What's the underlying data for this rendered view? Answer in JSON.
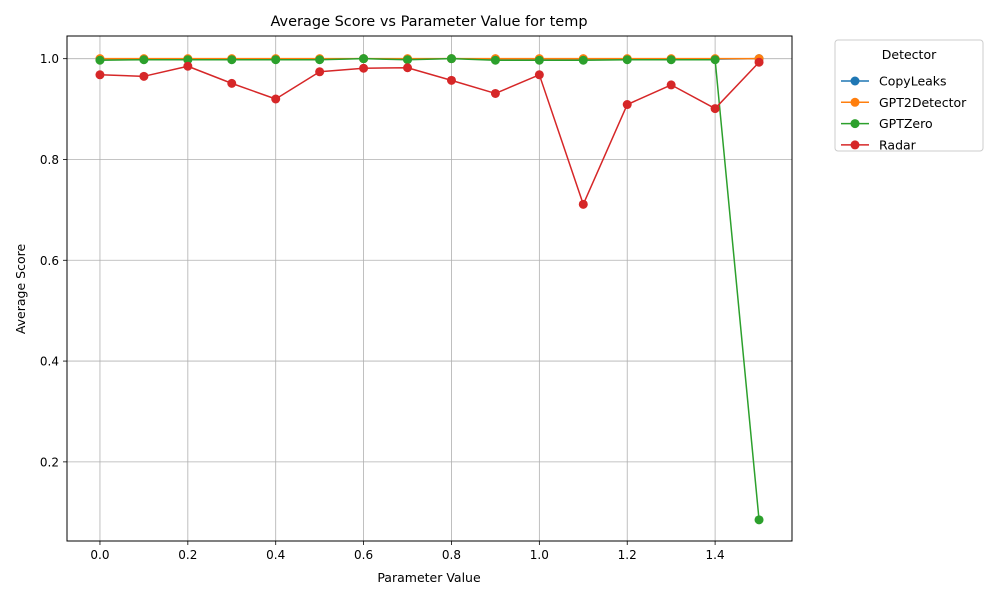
{
  "chart_data": {
    "type": "line",
    "title": "Average Score vs Parameter Value for temp",
    "xlabel": "Parameter Value",
    "ylabel": "Average Score",
    "xlim": [
      -0.075,
      1.575
    ],
    "ylim": [
      0.043,
      1.045
    ],
    "xticks": [
      0.0,
      0.2,
      0.4,
      0.6,
      0.8,
      1.0,
      1.2,
      1.4
    ],
    "xtick_labels": [
      "0.0",
      "0.2",
      "0.4",
      "0.6",
      "0.8",
      "1.0",
      "1.2",
      "1.4"
    ],
    "yticks": [
      0.2,
      0.4,
      0.6,
      0.8,
      1.0
    ],
    "ytick_labels": [
      "0.2",
      "0.4",
      "0.6",
      "0.8",
      "1.0"
    ],
    "grid": true,
    "legend": {
      "title": "Detector",
      "placement": "outside-upper-right"
    },
    "x": [
      0.0,
      0.1,
      0.2,
      0.3,
      0.4,
      0.5,
      0.6,
      0.7,
      0.8,
      0.9,
      1.0,
      1.1,
      1.2,
      1.3,
      1.4,
      1.5
    ],
    "series": [
      {
        "name": "CopyLeaks",
        "color": "#1f77b4",
        "values": [
          0.999,
          0.999,
          0.999,
          0.999,
          0.999,
          0.999,
          1.0,
          0.999,
          1.0,
          0.999,
          0.999,
          0.999,
          0.999,
          0.999,
          0.999,
          1.0
        ]
      },
      {
        "name": "GPT2Detector",
        "color": "#ff7f0e",
        "values": [
          1.0,
          1.0,
          1.0,
          1.0,
          1.0,
          1.0,
          1.0,
          1.0,
          1.0,
          1.0,
          1.0,
          1.0,
          1.0,
          1.0,
          1.0,
          1.0
        ]
      },
      {
        "name": "GPTZero",
        "color": "#2ca02c",
        "values": [
          0.997,
          0.998,
          0.998,
          0.998,
          0.998,
          0.998,
          1.0,
          0.998,
          1.0,
          0.997,
          0.997,
          0.997,
          0.998,
          0.998,
          0.998,
          0.085
        ]
      },
      {
        "name": "Radar",
        "color": "#d62728",
        "values": [
          0.968,
          0.965,
          0.985,
          0.951,
          0.92,
          0.974,
          0.981,
          0.982,
          0.957,
          0.931,
          0.968,
          0.711,
          0.909,
          0.948,
          0.901,
          0.993
        ]
      }
    ]
  }
}
